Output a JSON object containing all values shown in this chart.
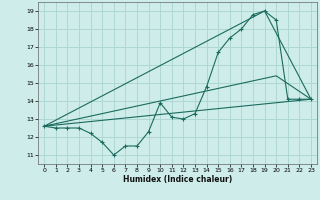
{
  "xlabel": "Humidex (Indice chaleur)",
  "bg_color": "#ceecea",
  "grid_color": "#afd8d4",
  "line_color": "#1a6b5e",
  "xlim": [
    -0.5,
    23.5
  ],
  "ylim": [
    10.5,
    19.5
  ],
  "xticks": [
    0,
    1,
    2,
    3,
    4,
    5,
    6,
    7,
    8,
    9,
    10,
    11,
    12,
    13,
    14,
    15,
    16,
    17,
    18,
    19,
    20,
    21,
    22,
    23
  ],
  "yticks": [
    11,
    12,
    13,
    14,
    15,
    16,
    17,
    18,
    19
  ],
  "data_x": [
    0,
    1,
    2,
    3,
    4,
    5,
    6,
    7,
    8,
    9,
    10,
    11,
    12,
    13,
    14,
    15,
    16,
    17,
    18,
    19,
    20,
    21,
    22,
    23
  ],
  "data_y": [
    12.6,
    12.5,
    12.5,
    12.5,
    12.2,
    11.7,
    11.0,
    11.5,
    11.5,
    12.3,
    13.9,
    13.1,
    13.0,
    13.3,
    14.8,
    16.7,
    17.5,
    18.0,
    18.8,
    19.0,
    18.5,
    14.1,
    14.1,
    14.1
  ],
  "line1_x": [
    0,
    23
  ],
  "line1_y": [
    12.6,
    14.1
  ],
  "line2_x": [
    0,
    20,
    23
  ],
  "line2_y": [
    12.6,
    15.4,
    14.1
  ],
  "line3_x": [
    0,
    19,
    23
  ],
  "line3_y": [
    12.6,
    19.0,
    14.1
  ]
}
